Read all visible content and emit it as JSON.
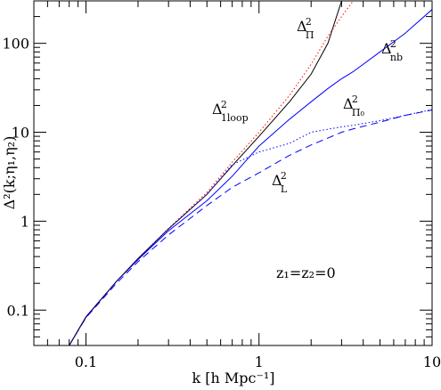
{
  "chart_data": {
    "type": "line",
    "logx": true,
    "logy": true,
    "xlabel": "k [h Mpc⁻¹]",
    "ylabel": "Δ²(k;η₁,η₂)",
    "xlim": [
      0.05,
      10
    ],
    "ylim": [
      0.04,
      300
    ],
    "xticks": [
      0.1,
      1,
      10
    ],
    "yticks": [
      0.1,
      1,
      10,
      100
    ],
    "xminorticks": [
      0.06,
      0.07,
      0.08,
      0.09,
      0.2,
      0.3,
      0.4,
      0.5,
      0.6,
      0.7,
      0.8,
      0.9,
      2,
      3,
      4,
      5,
      6,
      7,
      8,
      9
    ],
    "yminorticks": [
      0.05,
      0.06,
      0.07,
      0.08,
      0.09,
      0.2,
      0.3,
      0.4,
      0.5,
      0.6,
      0.7,
      0.8,
      0.9,
      2,
      3,
      4,
      5,
      6,
      7,
      8,
      9,
      20,
      30,
      40,
      50,
      60,
      70,
      80,
      90,
      200
    ],
    "x": [
      0.08,
      0.1,
      0.15,
      0.2,
      0.3,
      0.5,
      0.7,
      1,
      1.5,
      2,
      2.5,
      3,
      3.5,
      5,
      7,
      10
    ],
    "series": [
      {
        "color": "#0000ff",
        "dash": "dashed",
        "values": [
          0.04,
          0.082,
          0.2,
          0.35,
          0.7,
          1.5,
          2.4,
          3.5,
          5.5,
          7.2,
          8.6,
          10,
          10.9,
          13,
          15.5,
          17.8
        ]
      },
      {
        "color": "#0000ff",
        "dash": "solid",
        "values": [
          0.04,
          0.083,
          0.21,
          0.37,
          0.78,
          1.7,
          3.2,
          7,
          14,
          22,
          31,
          40,
          48,
          80,
          130,
          240
        ]
      },
      {
        "color": "#000000",
        "dash": "solid",
        "values": [
          0.04,
          0.084,
          0.21,
          0.38,
          0.82,
          2.0,
          4.2,
          9,
          22,
          45,
          100,
          300,
          null,
          null,
          null,
          null
        ]
      },
      {
        "color": "#ff0000",
        "dash": "dotted",
        "values": [
          0.04,
          0.084,
          0.21,
          0.38,
          0.83,
          2.1,
          4.6,
          10,
          26,
          58,
          120,
          200,
          300,
          null,
          null,
          null
        ]
      },
      {
        "color": "#0000ff",
        "dash": "dotted",
        "values": [
          0.04,
          0.084,
          0.21,
          0.38,
          0.82,
          2.0,
          4.3,
          6.0,
          7.5,
          10,
          10.8,
          11.5,
          12,
          13.5,
          15.5,
          18
        ]
      }
    ],
    "annotations": [
      {
        "text": "Δ",
        "sup": "2",
        "sub": "Π"
      },
      {
        "text": "Δ",
        "sup": "2",
        "sub": "nb"
      },
      {
        "text": "Δ",
        "sup": "2",
        "sub": "1loop"
      },
      {
        "text": "Δ",
        "sup": "2",
        "sub": "Π₀"
      },
      {
        "text": "Δ",
        "sup": "2",
        "sub": "L"
      },
      {
        "text": "z₁=z₂=0"
      }
    ]
  }
}
